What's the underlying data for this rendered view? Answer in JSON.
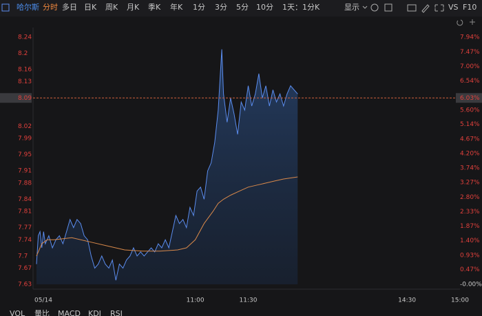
{
  "toolbar": {
    "stock": "哈尔斯",
    "active_tab": "分时",
    "tabs": [
      "多日",
      "日K",
      "周K",
      "月K",
      "季K",
      "年K",
      "1分",
      "3分",
      "5分",
      "10分",
      "1天：1分K"
    ],
    "display": "显示",
    "vs": "VS",
    "f10": "F10"
  },
  "indicators": [
    "VOL",
    "量比",
    "MACD",
    "KDJ",
    "RSI"
  ],
  "chart_data": {
    "type": "line",
    "xlim": [
      0,
      240
    ],
    "xticks": [
      {
        "value": 0,
        "label": "05/14"
      },
      {
        "value": 90,
        "label": "11:00"
      },
      {
        "value": 120,
        "label": "11:30"
      },
      {
        "value": 210,
        "label": "14:30"
      },
      {
        "value": 240,
        "label": "15:00"
      }
    ],
    "ylim": [
      7.63,
      8.24
    ],
    "yticks": [
      8.24,
      8.2,
      8.16,
      8.13,
      8.02,
      7.99,
      7.95,
      7.91,
      7.88,
      7.84,
      7.81,
      7.77,
      7.74,
      7.7,
      7.67,
      7.63
    ],
    "y2lim": [
      0,
      7.94
    ],
    "y2ticks": [
      {
        "value": 7.94,
        "label": "7.94%"
      },
      {
        "value": 7.47,
        "label": "7.47%"
      },
      {
        "value": 7.0,
        "label": "7.00%"
      },
      {
        "value": 6.54,
        "label": "6.54%"
      },
      {
        "value": 5.6,
        "label": "5.60%"
      },
      {
        "value": 5.14,
        "label": "5.14%"
      },
      {
        "value": 4.67,
        "label": "4.67%"
      },
      {
        "value": 4.2,
        "label": "4.20%"
      },
      {
        "value": 3.74,
        "label": "3.74%"
      },
      {
        "value": 3.27,
        "label": "3.27%"
      },
      {
        "value": 2.8,
        "label": "2.80%"
      },
      {
        "value": 2.33,
        "label": "2.33%"
      },
      {
        "value": 1.87,
        "label": "1.87%"
      },
      {
        "value": 1.4,
        "label": "1.40%"
      },
      {
        "value": 0.93,
        "label": "0.93%"
      },
      {
        "value": 0.47,
        "label": "0.47%"
      },
      {
        "value": 0,
        "label": "-0.00%"
      }
    ],
    "crosshair": {
      "price": 8.09,
      "percent": {
        "value": 6.03,
        "label": "6.03%"
      }
    },
    "series": [
      {
        "name": "price",
        "color": "#5b8def",
        "x": [
          0,
          1,
          2,
          3,
          4,
          5,
          7,
          9,
          11,
          13,
          15,
          17,
          19,
          21,
          23,
          25,
          27,
          29,
          31,
          33,
          35,
          37,
          39,
          41,
          43,
          45,
          47,
          49,
          51,
          53,
          55,
          57,
          59,
          61,
          63,
          65,
          67,
          69,
          71,
          73,
          75,
          77,
          79,
          81,
          83,
          85,
          87,
          89,
          91,
          93,
          95,
          97,
          99,
          101,
          103,
          105,
          106,
          108,
          110,
          112,
          114,
          116,
          118,
          120,
          122,
          124,
          126,
          128,
          130,
          132,
          134,
          136,
          138,
          140,
          142,
          144,
          146,
          148
        ],
        "values": [
          7.68,
          7.75,
          7.76,
          7.72,
          7.76,
          7.73,
          7.75,
          7.72,
          7.74,
          7.75,
          7.73,
          7.76,
          7.79,
          7.77,
          7.79,
          7.78,
          7.75,
          7.74,
          7.7,
          7.67,
          7.68,
          7.7,
          7.68,
          7.67,
          7.69,
          7.64,
          7.68,
          7.67,
          7.69,
          7.7,
          7.72,
          7.7,
          7.71,
          7.7,
          7.71,
          7.72,
          7.71,
          7.73,
          7.72,
          7.74,
          7.72,
          7.76,
          7.8,
          7.78,
          7.79,
          7.77,
          7.82,
          7.8,
          7.86,
          7.87,
          7.84,
          7.91,
          7.93,
          7.98,
          8.06,
          8.21,
          8.1,
          8.03,
          8.09,
          8.05,
          8.0,
          8.08,
          8.06,
          8.12,
          8.07,
          8.1,
          8.15,
          8.09,
          8.12,
          8.07,
          8.11,
          8.08,
          8.1,
          8.07,
          8.1,
          8.12,
          8.11,
          8.1
        ]
      },
      {
        "name": "average",
        "color": "#d9894a",
        "x": [
          0,
          3,
          6,
          10,
          20,
          30,
          40,
          50,
          60,
          70,
          80,
          85,
          90,
          95,
          100,
          103,
          106,
          110,
          115,
          120,
          125,
          130,
          135,
          140,
          148
        ],
        "values": [
          7.7,
          7.73,
          7.74,
          7.74,
          7.745,
          7.735,
          7.725,
          7.715,
          7.712,
          7.712,
          7.715,
          7.72,
          7.74,
          7.78,
          7.81,
          7.83,
          7.84,
          7.85,
          7.86,
          7.87,
          7.875,
          7.88,
          7.885,
          7.89,
          7.895
        ]
      }
    ]
  }
}
